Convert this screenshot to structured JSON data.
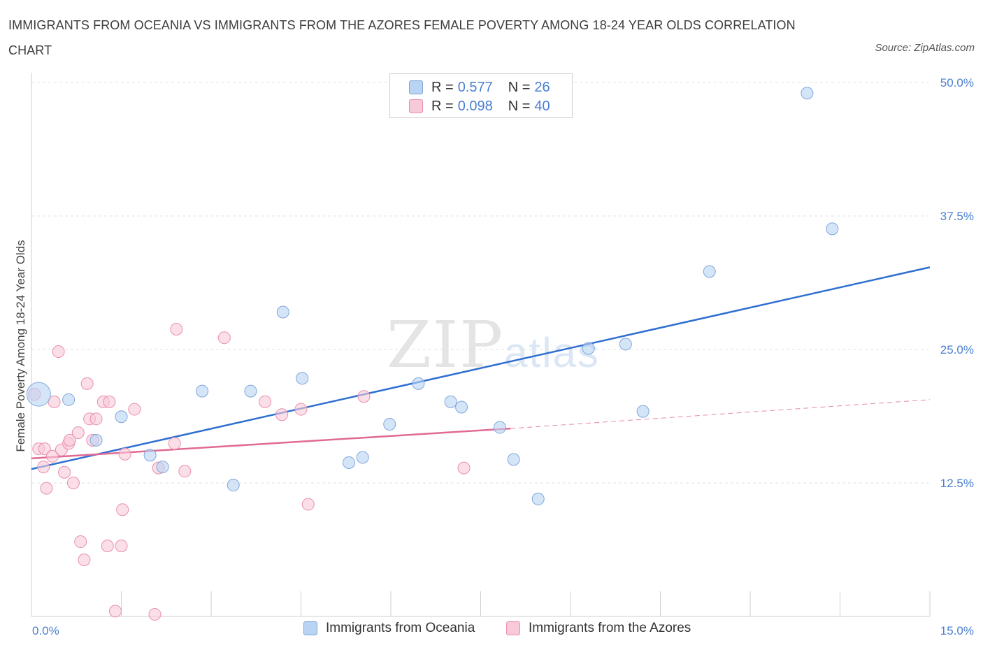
{
  "header": {
    "title": "IMMIGRANTS FROM OCEANIA VS IMMIGRANTS FROM THE AZORES FEMALE POVERTY AMONG 18-24 YEAR OLDS CORRELATION CHART",
    "source": "Source: ZipAtlas.com"
  },
  "watermark": {
    "zip": "ZIP",
    "atlas": "atlas"
  },
  "legend_top": {
    "rows": [
      {
        "r_label": "R = ",
        "r_value": "0.577",
        "n_label": "N = ",
        "n_value": "26"
      },
      {
        "r_label": "R = ",
        "r_value": "0.098",
        "n_label": "N = ",
        "n_value": "40"
      }
    ]
  },
  "legend_bottom": {
    "items": [
      {
        "label": "Immigrants from Oceania"
      },
      {
        "label": "Immigrants from the Azores"
      }
    ]
  },
  "colors": {
    "oceania_fill": "#b9d3f3",
    "oceania_stroke": "#7fa7dc",
    "oceania_line": "#2f6fd0",
    "azores_fill": "#f8c9d8",
    "azores_stroke": "#e98fae",
    "azores_line": "#e06a95",
    "grid": "#e2e2e2",
    "tick_text": "#4a7fd0"
  },
  "chart_data": {
    "type": "scatter",
    "title": "IMMIGRANTS FROM OCEANIA VS IMMIGRANTS FROM THE AZORES FEMALE POVERTY AMONG 18-24 YEAR OLDS CORRELATION CHART",
    "xlabel": "",
    "ylabel": "Female Poverty Among 18-24 Year Olds",
    "xlim": [
      0,
      15
    ],
    "ylim": [
      0,
      50
    ],
    "x_tick_labels": [
      "0.0%",
      "15.0%"
    ],
    "y_ticks": [
      12.5,
      25.0,
      37.5,
      50.0
    ],
    "y_tick_labels": [
      "12.5%",
      "25.0%",
      "37.5%",
      "50.0%"
    ],
    "grid": true,
    "legend_position": "bottom",
    "series": [
      {
        "name": "Immigrants from Oceania",
        "R": 0.577,
        "N": 26,
        "points": [
          [
            0.12,
            20.8
          ],
          [
            0.62,
            20.3
          ],
          [
            1.08,
            16.5
          ],
          [
            1.5,
            18.7
          ],
          [
            1.98,
            15.1
          ],
          [
            2.19,
            14.0
          ],
          [
            2.85,
            21.1
          ],
          [
            3.37,
            12.3
          ],
          [
            3.66,
            21.1
          ],
          [
            4.2,
            28.5
          ],
          [
            4.52,
            22.3
          ],
          [
            5.3,
            14.4
          ],
          [
            5.53,
            14.9
          ],
          [
            5.98,
            18.0
          ],
          [
            6.46,
            21.8
          ],
          [
            7.0,
            20.1
          ],
          [
            7.18,
            19.6
          ],
          [
            7.82,
            17.7
          ],
          [
            8.05,
            14.7
          ],
          [
            8.46,
            11.0
          ],
          [
            9.3,
            25.1
          ],
          [
            9.92,
            25.5
          ],
          [
            10.21,
            19.2
          ],
          [
            11.32,
            32.3
          ],
          [
            12.95,
            49.0
          ],
          [
            13.37,
            36.3
          ]
        ],
        "trend": {
          "x": [
            0,
            15
          ],
          "y": [
            13.8,
            32.7
          ],
          "style": "solid"
        }
      },
      {
        "name": "Immigrants from the Azores",
        "R": 0.098,
        "N": 40,
        "points": [
          [
            0.05,
            20.8
          ],
          [
            0.12,
            15.7
          ],
          [
            0.22,
            15.7
          ],
          [
            0.2,
            14.0
          ],
          [
            0.25,
            12.0
          ],
          [
            0.35,
            15.0
          ],
          [
            0.38,
            20.1
          ],
          [
            0.45,
            24.8
          ],
          [
            0.5,
            15.6
          ],
          [
            0.55,
            13.5
          ],
          [
            0.62,
            16.2
          ],
          [
            0.64,
            16.5
          ],
          [
            0.7,
            12.5
          ],
          [
            0.78,
            17.2
          ],
          [
            0.82,
            7.0
          ],
          [
            0.88,
            5.3
          ],
          [
            0.93,
            21.8
          ],
          [
            0.97,
            18.5
          ],
          [
            1.02,
            16.5
          ],
          [
            1.08,
            18.5
          ],
          [
            1.2,
            20.1
          ],
          [
            1.27,
            6.6
          ],
          [
            1.3,
            20.1
          ],
          [
            1.4,
            0.5
          ],
          [
            1.5,
            6.6
          ],
          [
            1.52,
            10.0
          ],
          [
            1.56,
            15.2
          ],
          [
            1.72,
            19.4
          ],
          [
            2.06,
            0.2
          ],
          [
            2.12,
            13.9
          ],
          [
            2.39,
            16.2
          ],
          [
            2.42,
            26.9
          ],
          [
            2.56,
            13.6
          ],
          [
            3.22,
            26.1
          ],
          [
            3.9,
            20.1
          ],
          [
            4.18,
            18.9
          ],
          [
            4.5,
            19.4
          ],
          [
            4.62,
            10.5
          ],
          [
            5.55,
            20.6
          ],
          [
            7.22,
            13.9
          ]
        ],
        "trend": {
          "x": [
            0,
            8.0
          ],
          "y": [
            14.8,
            17.6
          ],
          "style": "solid",
          "extension_x": [
            8.0,
            15
          ],
          "extension_y": [
            17.6,
            20.3
          ],
          "extension_style": "dashed"
        }
      }
    ]
  }
}
